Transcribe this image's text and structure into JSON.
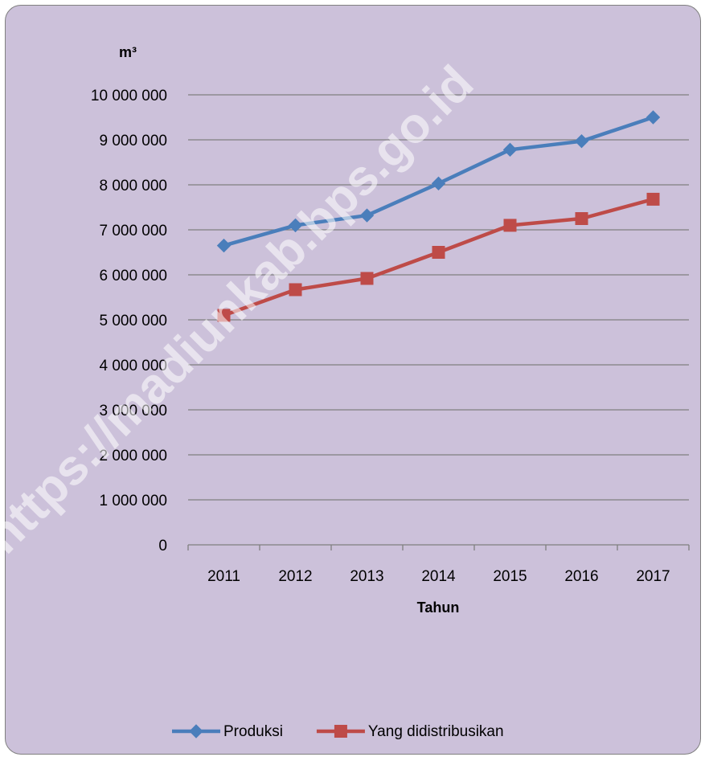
{
  "chart_data": {
    "type": "line",
    "ylabel": "m³",
    "xlabel": "Tahun",
    "categories": [
      "2011",
      "2012",
      "2013",
      "2014",
      "2015",
      "2016",
      "2017"
    ],
    "ylim": [
      0,
      10000000
    ],
    "yticks": [
      0,
      1000000,
      2000000,
      3000000,
      4000000,
      5000000,
      6000000,
      7000000,
      8000000,
      9000000,
      10000000
    ],
    "ytick_labels": [
      "0",
      "1 000 000",
      "2 000 000",
      "3 000 000",
      "4 000 000",
      "5 000 000",
      "6 000 000",
      "7 000 000",
      "8 000 000",
      "9 000 000",
      "10 000 000"
    ],
    "grid": true,
    "legend_position": "bottom",
    "series": [
      {
        "name": "Produksi",
        "color": "#4a7ebb",
        "marker": "diamond",
        "values": [
          6650000,
          7100000,
          7320000,
          8030000,
          8780000,
          8970000,
          9500000
        ]
      },
      {
        "name": "Yang didistribusikan",
        "color": "#be4b48",
        "marker": "square",
        "values": [
          5100000,
          5670000,
          5920000,
          6500000,
          7100000,
          7250000,
          7680000
        ]
      }
    ]
  },
  "watermark": "https://madiunkab.bps.go.id",
  "colors": {
    "background": "#ccc1da",
    "grid": "#7f7f7f"
  }
}
